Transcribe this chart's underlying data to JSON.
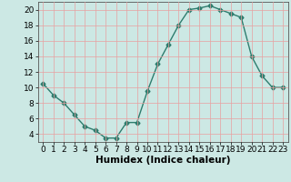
{
  "x": [
    0,
    1,
    2,
    3,
    4,
    5,
    6,
    7,
    8,
    9,
    10,
    11,
    12,
    13,
    14,
    15,
    16,
    17,
    18,
    19,
    20,
    21,
    22,
    23
  ],
  "y": [
    10.5,
    9.0,
    8.0,
    6.5,
    5.0,
    4.5,
    3.5,
    3.5,
    5.5,
    5.5,
    9.5,
    13.0,
    15.5,
    18.0,
    20.0,
    20.2,
    20.5,
    20.0,
    19.5,
    19.0,
    14.0,
    11.5,
    10.0,
    10.0
  ],
  "line_color": "#2e7d6e",
  "marker": "D",
  "marker_size": 2.5,
  "bg_color": "#cce8e4",
  "grid_color": "#e8a0a0",
  "xlabel": "Humidex (Indice chaleur)",
  "xlim": [
    -0.5,
    23.5
  ],
  "ylim": [
    3,
    21
  ],
  "yticks": [
    4,
    6,
    8,
    10,
    12,
    14,
    16,
    18,
    20
  ],
  "xticks": [
    0,
    1,
    2,
    3,
    4,
    5,
    6,
    7,
    8,
    9,
    10,
    11,
    12,
    13,
    14,
    15,
    16,
    17,
    18,
    19,
    20,
    21,
    22,
    23
  ],
  "xlabel_fontsize": 7.5,
  "tick_fontsize": 6.5
}
